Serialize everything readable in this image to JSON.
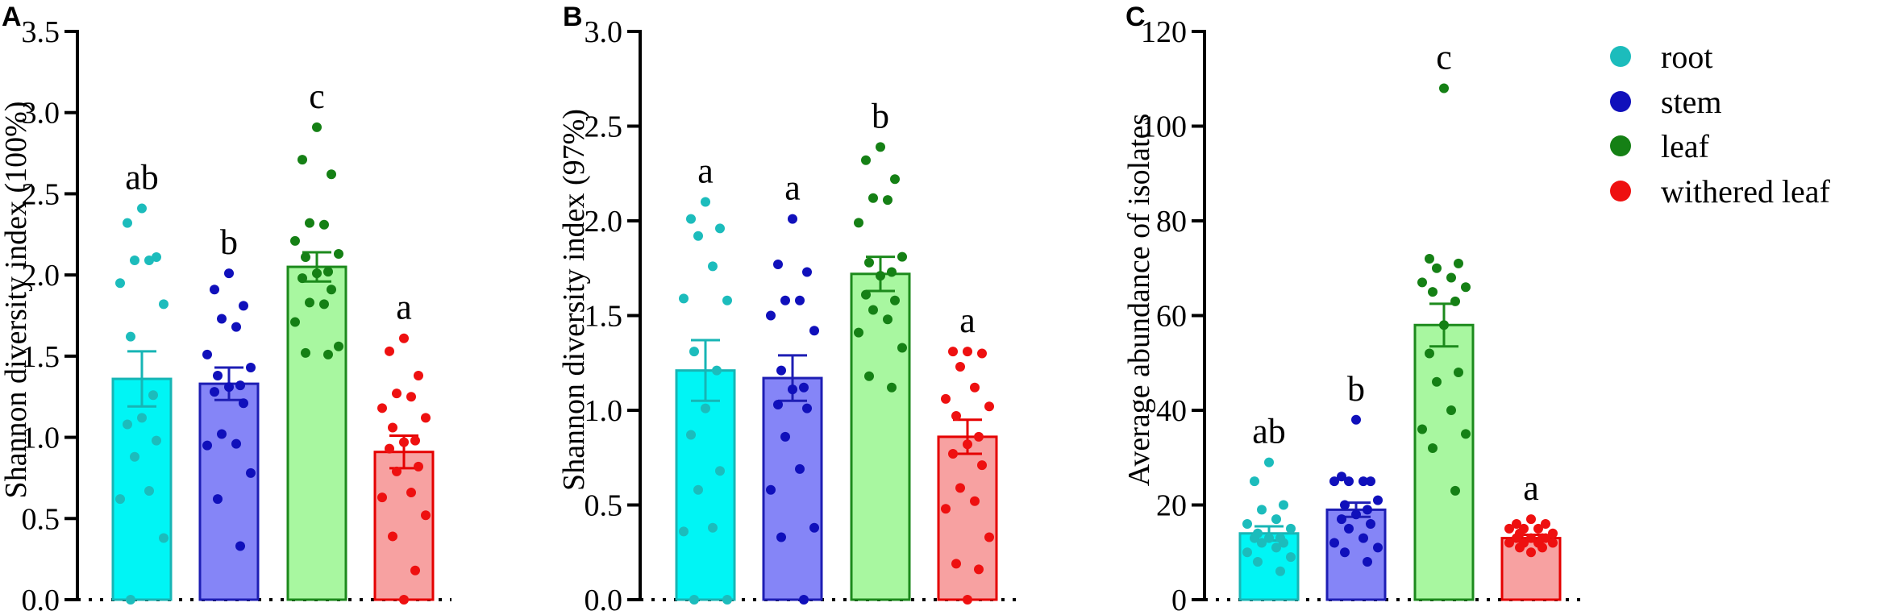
{
  "colors": {
    "root_fill": "#00f5f5",
    "root_edge": "#17b5b5",
    "root_dot": "#1cbcbc",
    "stem_fill": "#8585f7",
    "stem_edge": "#1e1eb4",
    "stem_dot": "#1010bb",
    "leaf_fill": "#a8f7a0",
    "leaf_edge": "#1c8a1c",
    "leaf_dot": "#158015",
    "withered_fill": "#f7a1a1",
    "withered_edge": "#e50000",
    "withered_dot": "#ee1010"
  },
  "legend": {
    "items": [
      {
        "key": "root",
        "label": "root"
      },
      {
        "key": "stem",
        "label": "stem"
      },
      {
        "key": "leaf",
        "label": "leaf"
      },
      {
        "key": "withered",
        "label": "withered leaf"
      }
    ]
  },
  "chart_data": [
    {
      "panel": "A",
      "type": "bar",
      "ylabel": "Shannon diversity index (100%)",
      "ylim": [
        0,
        3.5
      ],
      "yticks": [
        0.0,
        0.5,
        1.0,
        1.5,
        2.0,
        2.5,
        3.0,
        3.5
      ],
      "ytick_labels": [
        "0.0",
        "0.5",
        "1.0",
        "1.5",
        "2.0",
        "2.5",
        "3.0",
        "3.5"
      ],
      "categories": [
        "root",
        "stem",
        "leaf",
        "withered leaf"
      ],
      "bars": [
        {
          "key": "root",
          "mean": 1.36,
          "sem": 0.17,
          "letter": "ab",
          "points": [
            2.41,
            2.32,
            2.11,
            2.09,
            2.09,
            1.95,
            1.82,
            1.62,
            1.26,
            1.12,
            1.08,
            0.98,
            0.88,
            0.67,
            0.62,
            0.38,
            0.0
          ]
        },
        {
          "key": "stem",
          "mean": 1.33,
          "sem": 0.1,
          "letter": "b",
          "points": [
            2.01,
            1.91,
            1.81,
            1.73,
            1.68,
            1.51,
            1.43,
            1.38,
            1.32,
            1.31,
            1.28,
            1.21,
            1.02,
            0.96,
            0.95,
            0.78,
            0.62,
            0.33
          ]
        },
        {
          "key": "leaf",
          "mean": 2.05,
          "sem": 0.09,
          "letter": "c",
          "points": [
            2.91,
            2.71,
            2.62,
            2.32,
            2.31,
            2.21,
            2.13,
            2.11,
            2.02,
            2.01,
            1.98,
            1.91,
            1.83,
            1.82,
            1.71,
            1.56,
            1.52,
            1.51
          ]
        },
        {
          "key": "withered",
          "mean": 0.91,
          "sem": 0.1,
          "letter": "a",
          "points": [
            1.61,
            1.53,
            1.38,
            1.27,
            1.25,
            1.18,
            1.12,
            1.06,
            0.98,
            0.97,
            0.93,
            0.82,
            0.79,
            0.66,
            0.63,
            0.52,
            0.39,
            0.18,
            0.0
          ]
        }
      ]
    },
    {
      "panel": "B",
      "type": "bar",
      "ylabel": "Shannon diversity index (97%)",
      "ylim": [
        0,
        3.0
      ],
      "yticks": [
        0.0,
        0.5,
        1.0,
        1.5,
        2.0,
        2.5,
        3.0
      ],
      "ytick_labels": [
        "0.0",
        "0.5",
        "1.0",
        "1.5",
        "2.0",
        "2.5",
        "3.0"
      ],
      "categories": [
        "root",
        "stem",
        "leaf",
        "withered leaf"
      ],
      "bars": [
        {
          "key": "root",
          "mean": 1.21,
          "sem": 0.16,
          "letter": "a",
          "points": [
            2.1,
            2.01,
            1.96,
            1.92,
            1.76,
            1.59,
            1.58,
            1.31,
            1.21,
            1.01,
            0.87,
            0.68,
            0.58,
            0.38,
            0.36,
            0.0,
            0.0
          ]
        },
        {
          "key": "stem",
          "mean": 1.17,
          "sem": 0.12,
          "letter": "a",
          "points": [
            2.01,
            1.77,
            1.73,
            1.58,
            1.58,
            1.5,
            1.42,
            1.21,
            1.12,
            1.11,
            1.03,
            1.01,
            0.86,
            0.69,
            0.58,
            0.38,
            0.33,
            0.0
          ]
        },
        {
          "key": "leaf",
          "mean": 1.72,
          "sem": 0.09,
          "letter": "b",
          "points": [
            2.39,
            2.32,
            2.22,
            2.12,
            2.11,
            1.99,
            1.81,
            1.78,
            1.73,
            1.71,
            1.61,
            1.58,
            1.53,
            1.48,
            1.41,
            1.33,
            1.18,
            1.12
          ]
        },
        {
          "key": "withered",
          "mean": 0.86,
          "sem": 0.09,
          "letter": "a",
          "points": [
            1.31,
            1.31,
            1.3,
            1.23,
            1.12,
            1.06,
            1.02,
            0.97,
            0.86,
            0.82,
            0.77,
            0.71,
            0.59,
            0.52,
            0.48,
            0.33,
            0.19,
            0.16,
            0.0
          ]
        }
      ]
    },
    {
      "panel": "C",
      "type": "bar",
      "ylabel": "Average abundance of  isolates",
      "ylim": [
        0,
        120
      ],
      "yticks": [
        0,
        20,
        40,
        60,
        80,
        100,
        120
      ],
      "ytick_labels": [
        "0",
        "20",
        "40",
        "60",
        "80",
        "100",
        "120"
      ],
      "categories": [
        "root",
        "stem",
        "leaf",
        "withered leaf"
      ],
      "bars": [
        {
          "key": "root",
          "mean": 14.0,
          "sem": 1.5,
          "letter": "ab",
          "points": [
            29,
            25,
            20,
            19,
            17,
            16,
            15,
            14,
            13,
            13,
            13,
            12,
            12,
            11,
            10,
            9,
            8,
            6
          ]
        },
        {
          "key": "stem",
          "mean": 19.0,
          "sem": 1.5,
          "letter": "b",
          "points": [
            38,
            26,
            25,
            25,
            25,
            25,
            21,
            20,
            19,
            18,
            17,
            16,
            15,
            13,
            12,
            11,
            10,
            8
          ]
        },
        {
          "key": "leaf",
          "mean": 58.0,
          "sem": 4.5,
          "letter": "c",
          "points": [
            108,
            72,
            71,
            70,
            68,
            67,
            66,
            65,
            63,
            58,
            52,
            48,
            46,
            40,
            36,
            35,
            32,
            23
          ]
        },
        {
          "key": "withered",
          "mean": 13.0,
          "sem": 0.7,
          "letter": "a",
          "points": [
            17,
            16,
            16,
            15,
            15,
            15,
            14,
            14,
            13,
            13,
            13,
            13,
            12,
            12,
            12,
            12,
            11,
            11,
            10
          ]
        }
      ]
    }
  ]
}
